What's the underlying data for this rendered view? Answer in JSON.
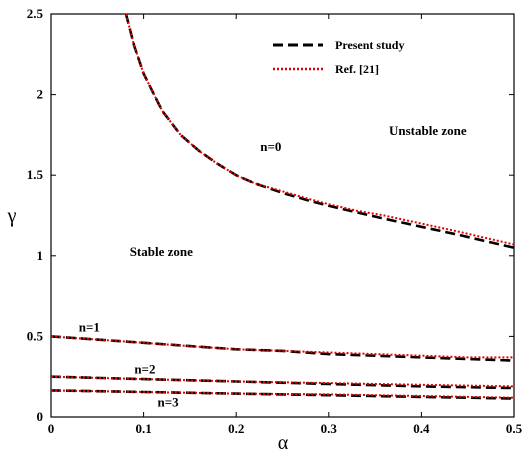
{
  "chart_data": {
    "type": "line",
    "title": "",
    "xlabel": "α",
    "ylabel": "γ",
    "xlim": [
      0,
      0.5
    ],
    "ylim": [
      0,
      2.5
    ],
    "xticks": [
      {
        "value": 0,
        "label": "0"
      },
      {
        "value": 0.1,
        "label": "0.1"
      },
      {
        "value": 0.2,
        "label": "0.2"
      },
      {
        "value": 0.3,
        "label": "0.3"
      },
      {
        "value": 0.4,
        "label": "0.4"
      },
      {
        "value": 0.5,
        "label": "0.5"
      }
    ],
    "yticks": [
      {
        "value": 0,
        "label": "0"
      },
      {
        "value": 0.5,
        "label": "0.5"
      },
      {
        "value": 1,
        "label": "1"
      },
      {
        "value": 1.5,
        "label": "1.5"
      },
      {
        "value": 2,
        "label": "2"
      },
      {
        "value": 2.5,
        "label": "2.5"
      }
    ],
    "grid": false,
    "legend": {
      "position": "top-right",
      "entries": [
        {
          "label": "Present study",
          "style": "dashed",
          "color": "#000000"
        },
        {
          "label": "Ref. [21]",
          "style": "dotted",
          "color": "#e00000"
        }
      ]
    },
    "series": [
      {
        "name": "Present study",
        "curve_label": "n=0",
        "x": [
          0.081,
          0.09,
          0.1,
          0.12,
          0.14,
          0.16,
          0.18,
          0.2,
          0.22,
          0.25,
          0.28,
          0.3,
          0.33,
          0.36,
          0.4,
          0.44,
          0.47,
          0.5
        ],
        "y": [
          2.5,
          2.3,
          2.13,
          1.9,
          1.75,
          1.65,
          1.57,
          1.5,
          1.45,
          1.39,
          1.34,
          1.31,
          1.27,
          1.23,
          1.18,
          1.13,
          1.09,
          1.05
        ]
      },
      {
        "name": "Ref. [21]",
        "curve_label": "n=0",
        "x": [
          0.081,
          0.09,
          0.1,
          0.12,
          0.14,
          0.16,
          0.18,
          0.2,
          0.22,
          0.25,
          0.28,
          0.3,
          0.33,
          0.36,
          0.4,
          0.44,
          0.47,
          0.5
        ],
        "y": [
          2.5,
          2.3,
          2.13,
          1.9,
          1.75,
          1.65,
          1.57,
          1.5,
          1.45,
          1.4,
          1.35,
          1.32,
          1.28,
          1.25,
          1.2,
          1.15,
          1.11,
          1.07
        ]
      },
      {
        "name": "Present study",
        "curve_label": "n=1",
        "x": [
          0,
          0.05,
          0.1,
          0.15,
          0.2,
          0.25,
          0.3,
          0.35,
          0.4,
          0.45,
          0.5
        ],
        "y": [
          0.5,
          0.48,
          0.46,
          0.44,
          0.42,
          0.41,
          0.39,
          0.38,
          0.37,
          0.36,
          0.35
        ]
      },
      {
        "name": "Ref. [21]",
        "curve_label": "n=1",
        "x": [
          0,
          0.05,
          0.1,
          0.15,
          0.2,
          0.25,
          0.3,
          0.35,
          0.4,
          0.45,
          0.5
        ],
        "y": [
          0.5,
          0.48,
          0.46,
          0.44,
          0.42,
          0.41,
          0.4,
          0.39,
          0.38,
          0.37,
          0.37
        ]
      },
      {
        "name": "Present study",
        "curve_label": "n=2",
        "x": [
          0,
          0.1,
          0.2,
          0.3,
          0.4,
          0.5
        ],
        "y": [
          0.25,
          0.235,
          0.22,
          0.205,
          0.19,
          0.18
        ]
      },
      {
        "name": "Ref. [21]",
        "curve_label": "n=2",
        "x": [
          0,
          0.1,
          0.2,
          0.3,
          0.4,
          0.5
        ],
        "y": [
          0.25,
          0.235,
          0.22,
          0.21,
          0.2,
          0.19
        ]
      },
      {
        "name": "Present study",
        "curve_label": "n=3",
        "x": [
          0,
          0.1,
          0.2,
          0.3,
          0.4,
          0.5
        ],
        "y": [
          0.165,
          0.155,
          0.145,
          0.135,
          0.125,
          0.115
        ]
      },
      {
        "name": "Ref. [21]",
        "curve_label": "n=3",
        "x": [
          0,
          0.1,
          0.2,
          0.3,
          0.4,
          0.5
        ],
        "y": [
          0.165,
          0.155,
          0.145,
          0.14,
          0.13,
          0.12
        ]
      }
    ],
    "annotations": [
      {
        "text": "n=0",
        "x": 0.226,
        "y": 1.65
      },
      {
        "text": "n=1",
        "x": 0.03,
        "y": 0.53
      },
      {
        "text": "n=2",
        "x": 0.09,
        "y": 0.27
      },
      {
        "text": "n=3",
        "x": 0.115,
        "y": 0.065
      },
      {
        "text": "Stable zone",
        "x": 0.085,
        "y": 1.0
      },
      {
        "text": "Unstable zone",
        "x": 0.365,
        "y": 1.75
      }
    ]
  }
}
